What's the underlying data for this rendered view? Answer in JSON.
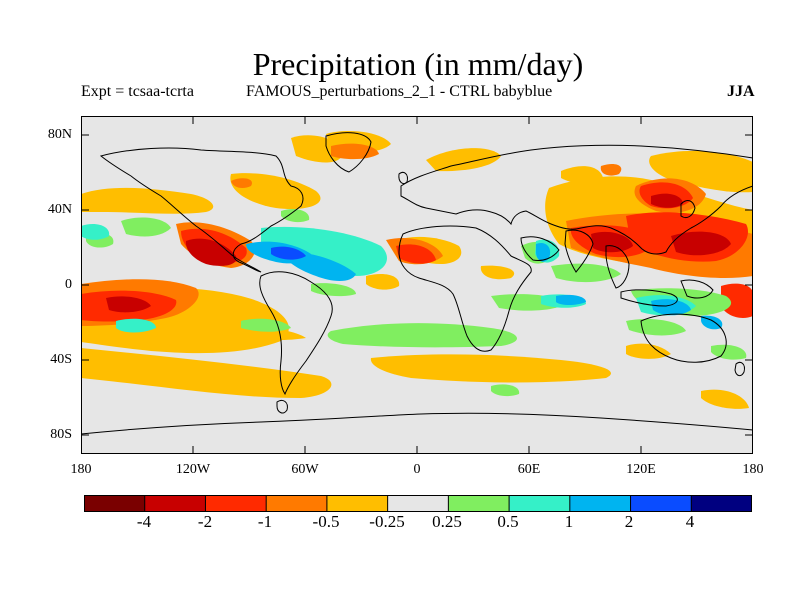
{
  "header": {
    "title": "Precipitation (in mm/day)",
    "expt_label": "Expt = tcsaa-tcrta",
    "run_label": "FAMOUS_perturbations_2_1 - CTRL babyblue",
    "season": "JJA"
  },
  "map": {
    "lat_ticks": [
      "80N",
      "40N",
      "0",
      "40S",
      "80S"
    ],
    "lon_ticks": [
      "180",
      "120W",
      "60W",
      "0",
      "60E",
      "120E",
      "180"
    ],
    "lon_range": [
      -180,
      180
    ],
    "lat_range": [
      -90,
      90
    ]
  },
  "colorbar": {
    "labels": [
      "-4",
      "-2",
      "-1",
      "-0.5",
      "-0.25",
      "0.25",
      "0.5",
      "1",
      "2",
      "4"
    ],
    "colors": [
      "#7a0000",
      "#c80000",
      "#ff2a00",
      "#ff7a00",
      "#ffbe00",
      "#e6e6e6",
      "#80ee60",
      "#35f0c8",
      "#00b4f0",
      "#0a4cff",
      "#000080"
    ]
  }
}
